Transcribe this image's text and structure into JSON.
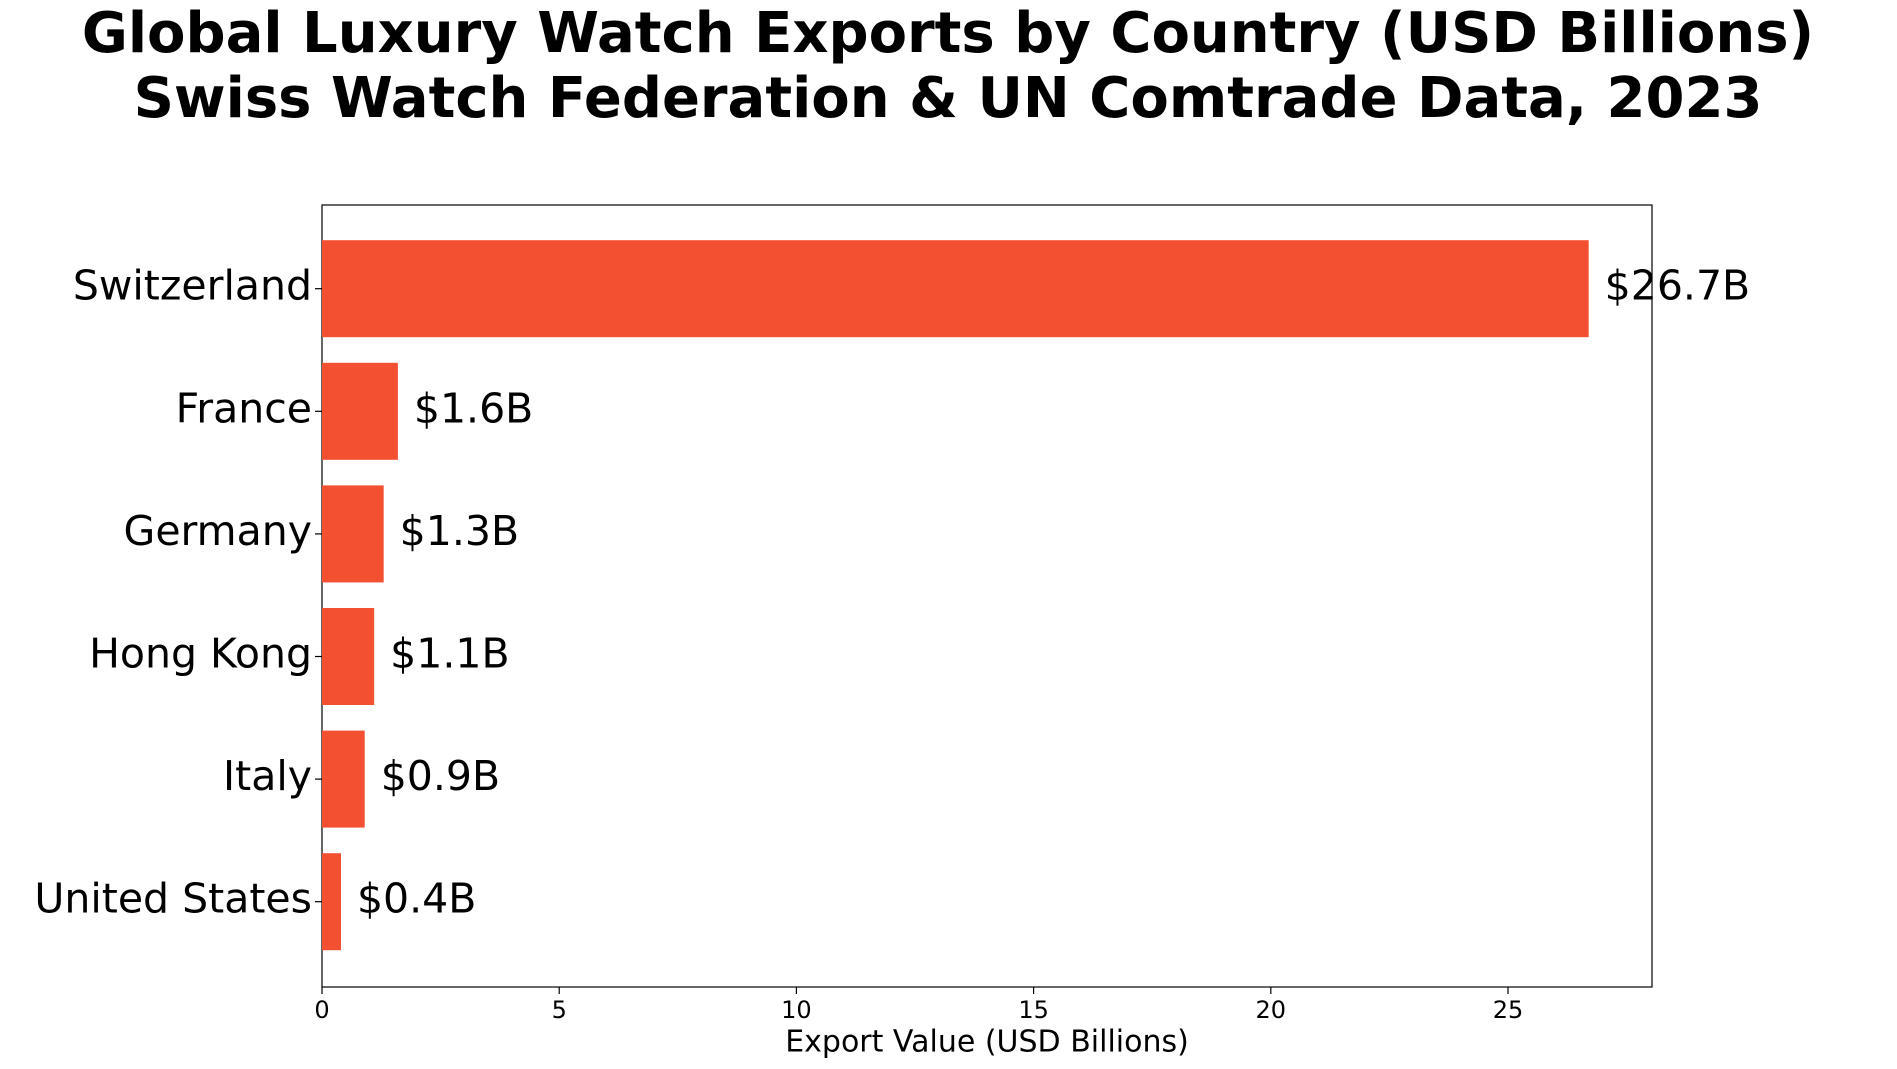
{
  "chart_data": {
    "type": "barh",
    "title": "Global Luxury Watch Exports by Country (USD Billions)",
    "subtitle": "Swiss Watch Federation & UN Comtrade Data, 2023",
    "x_label": "Export Value (USD Billions)",
    "categories": [
      "Switzerland",
      "France",
      "Germany",
      "Hong Kong",
      "Italy",
      "United States"
    ],
    "values": [
      26.7,
      1.6,
      1.3,
      1.1,
      0.9,
      0.4
    ],
    "value_labels": [
      "$26.7B",
      "$1.6B",
      "$1.3B",
      "$1.1B",
      "$0.9B",
      "$0.4B"
    ],
    "color": "#f35032",
    "xlim": [
      0,
      28.035
    ],
    "xticks": [
      0,
      5,
      10,
      15,
      20,
      25
    ],
    "grid": false
  }
}
